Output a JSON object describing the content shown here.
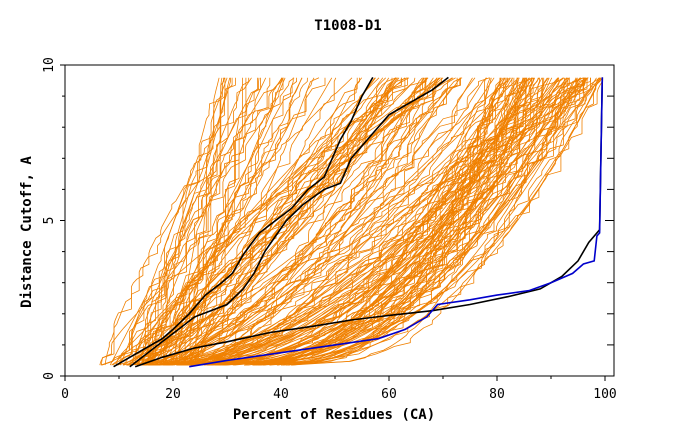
{
  "chart_data": {
    "type": "line",
    "title": "T1008-D1",
    "xlabel": "Percent of Residues (CA)",
    "ylabel": "Distance Cutoff, A",
    "xlim": [
      0,
      100
    ],
    "ylim": [
      0,
      10
    ],
    "x_ticks": [
      "0",
      "20",
      "40",
      "60",
      "80",
      "100"
    ],
    "y_ticks": [
      "0",
      "5",
      "10"
    ],
    "colors": {
      "background_curves": "#f08000",
      "highlight_black": "#000000",
      "highlight_blue": "#0000cc",
      "axes": "#000000"
    },
    "series": [
      {
        "color": "#000000",
        "points": [
          [
            9,
            0.3
          ],
          [
            12,
            0.6
          ],
          [
            15,
            0.9
          ],
          [
            18,
            1.2
          ],
          [
            20,
            1.5
          ],
          [
            23,
            2.0
          ],
          [
            26,
            2.6
          ],
          [
            29,
            3.0
          ],
          [
            31,
            3.3
          ],
          [
            33,
            3.9
          ],
          [
            36,
            4.6
          ],
          [
            39,
            5.0
          ],
          [
            42,
            5.4
          ],
          [
            45,
            6.0
          ],
          [
            48,
            6.4
          ],
          [
            51,
            7.6
          ],
          [
            53,
            8.2
          ],
          [
            55,
            9.0
          ],
          [
            57,
            9.6
          ]
        ]
      },
      {
        "color": "#000000",
        "points": [
          [
            12,
            0.3
          ],
          [
            15,
            0.7
          ],
          [
            18,
            1.1
          ],
          [
            21,
            1.5
          ],
          [
            24,
            1.9
          ],
          [
            27,
            2.1
          ],
          [
            30,
            2.3
          ],
          [
            33,
            2.8
          ],
          [
            35,
            3.3
          ],
          [
            37,
            4.0
          ],
          [
            39,
            4.5
          ],
          [
            41,
            5.0
          ],
          [
            44,
            5.5
          ],
          [
            48,
            6.0
          ],
          [
            51,
            6.2
          ],
          [
            53,
            7.0
          ],
          [
            56,
            7.6
          ],
          [
            60,
            8.4
          ],
          [
            64,
            8.8
          ],
          [
            68,
            9.2
          ],
          [
            71,
            9.6
          ]
        ]
      },
      {
        "color": "#000000",
        "points": [
          [
            13,
            0.3
          ],
          [
            18,
            0.6
          ],
          [
            24,
            0.9
          ],
          [
            30,
            1.1
          ],
          [
            38,
            1.4
          ],
          [
            46,
            1.6
          ],
          [
            53,
            1.8
          ],
          [
            60,
            1.95
          ],
          [
            68,
            2.1
          ],
          [
            75,
            2.3
          ],
          [
            82,
            2.55
          ],
          [
            88,
            2.8
          ],
          [
            92,
            3.2
          ],
          [
            95,
            3.7
          ],
          [
            97,
            4.3
          ],
          [
            99,
            4.7
          ],
          [
            99.5,
            9.6
          ]
        ]
      },
      {
        "color": "#0000cc",
        "points": [
          [
            23,
            0.3
          ],
          [
            30,
            0.5
          ],
          [
            40,
            0.75
          ],
          [
            50,
            1.0
          ],
          [
            58,
            1.2
          ],
          [
            63,
            1.5
          ],
          [
            67,
            1.9
          ],
          [
            69,
            2.3
          ],
          [
            75,
            2.45
          ],
          [
            80,
            2.6
          ],
          [
            86,
            2.75
          ],
          [
            90,
            3.0
          ],
          [
            94,
            3.3
          ],
          [
            96,
            3.6
          ],
          [
            98,
            3.7
          ],
          [
            98.5,
            4.5
          ],
          [
            99,
            4.6
          ],
          [
            99.5,
            9.6
          ]
        ]
      }
    ]
  }
}
